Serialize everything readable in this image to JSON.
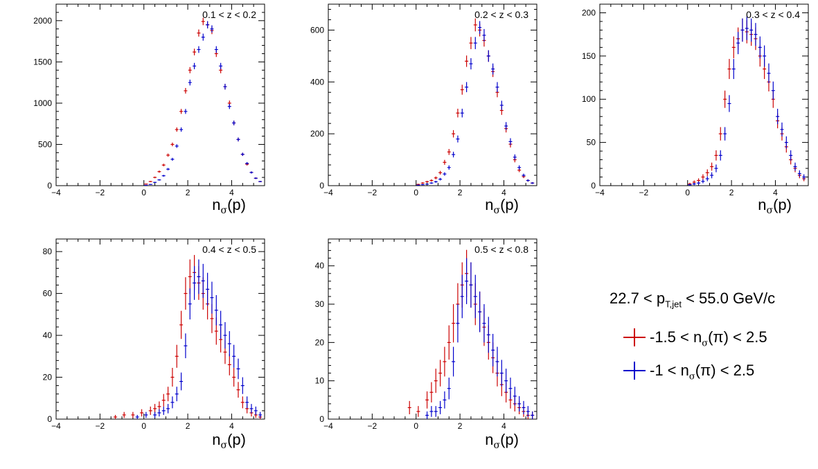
{
  "chart_data": [
    {
      "type": "scatter",
      "panel": "0.1 < z < 0.2",
      "annotation": "0.1 < z < 0.2",
      "xlabel": "nσ(p)",
      "xlim": [
        -4,
        5.5
      ],
      "ylim": [
        0,
        2200
      ],
      "xticks": [
        -4,
        -2,
        0,
        2,
        4
      ],
      "yticks": [
        0,
        500,
        1000,
        1500,
        2000
      ],
      "series": [
        {
          "color": "#cc0000",
          "x": [
            0.1,
            0.3,
            0.5,
            0.7,
            0.9,
            1.1,
            1.3,
            1.5,
            1.7,
            1.9,
            2.1,
            2.3,
            2.5,
            2.7,
            2.9,
            3.1,
            3.3,
            3.5,
            3.7,
            3.9,
            4.1,
            4.3,
            4.5,
            4.7,
            4.9,
            5.1,
            5.3
          ],
          "y": [
            20,
            50,
            100,
            170,
            250,
            370,
            500,
            680,
            900,
            1150,
            1400,
            1620,
            1850,
            1990,
            1950,
            1880,
            1600,
            1400,
            1200,
            1000,
            760,
            560,
            380,
            260,
            160,
            90,
            50
          ]
        },
        {
          "color": "#0000cc",
          "x": [
            0.1,
            0.3,
            0.5,
            0.7,
            0.9,
            1.1,
            1.3,
            1.5,
            1.7,
            1.9,
            2.1,
            2.3,
            2.5,
            2.7,
            2.9,
            3.1,
            3.3,
            3.5,
            3.7,
            3.9,
            4.1,
            4.3,
            4.5,
            4.7,
            4.9,
            5.1,
            5.3
          ],
          "y": [
            5,
            15,
            40,
            70,
            120,
            200,
            320,
            480,
            680,
            900,
            1250,
            1450,
            1650,
            1800,
            1950,
            1900,
            1650,
            1450,
            1200,
            960,
            760,
            560,
            380,
            270,
            160,
            90,
            50
          ]
        }
      ]
    },
    {
      "type": "scatter",
      "panel": "0.2 < z < 0.3",
      "annotation": "0.2 < z < 0.3",
      "xlabel": "nσ(p)",
      "xlim": [
        -4,
        5.5
      ],
      "ylim": [
        0,
        700
      ],
      "xticks": [
        -4,
        -2,
        0,
        2,
        4
      ],
      "yticks": [
        0,
        200,
        400,
        600
      ],
      "series": [
        {
          "color": "#cc0000",
          "x": [
            0.1,
            0.3,
            0.5,
            0.7,
            0.9,
            1.1,
            1.3,
            1.5,
            1.7,
            1.9,
            2.1,
            2.3,
            2.5,
            2.7,
            2.9,
            3.1,
            3.3,
            3.5,
            3.7,
            3.9,
            4.1,
            4.3,
            4.5,
            4.7,
            4.9,
            5.1,
            5.3
          ],
          "y": [
            5,
            10,
            15,
            20,
            30,
            50,
            90,
            130,
            200,
            280,
            370,
            480,
            550,
            620,
            600,
            560,
            500,
            440,
            360,
            290,
            220,
            160,
            100,
            60,
            35,
            20,
            10
          ]
        },
        {
          "color": "#0000cc",
          "x": [
            0.1,
            0.3,
            0.5,
            0.7,
            0.9,
            1.1,
            1.3,
            1.5,
            1.7,
            1.9,
            2.1,
            2.3,
            2.5,
            2.7,
            2.9,
            3.1,
            3.3,
            3.5,
            3.7,
            3.9,
            4.1,
            4.3,
            4.5,
            4.7,
            4.9,
            5.1,
            5.3
          ],
          "y": [
            2,
            4,
            6,
            10,
            15,
            25,
            45,
            70,
            120,
            180,
            280,
            380,
            470,
            550,
            610,
            580,
            500,
            450,
            380,
            310,
            230,
            170,
            110,
            70,
            40,
            20,
            10
          ]
        }
      ]
    },
    {
      "type": "scatter",
      "panel": "0.3 < z < 0.4",
      "annotation": "0.3 < z < 0.4",
      "xlabel": "nσ(p)",
      "xlim": [
        -4,
        5.5
      ],
      "ylim": [
        0,
        210
      ],
      "xticks": [
        -4,
        -2,
        0,
        2,
        4
      ],
      "yticks": [
        0,
        50,
        100,
        150,
        200
      ],
      "series": [
        {
          "color": "#cc0000",
          "x": [
            0.1,
            0.3,
            0.5,
            0.7,
            0.9,
            1.1,
            1.3,
            1.5,
            1.7,
            1.9,
            2.1,
            2.3,
            2.5,
            2.7,
            2.9,
            3.1,
            3.3,
            3.5,
            3.7,
            3.9,
            4.1,
            4.3,
            4.5,
            4.7,
            4.9,
            5.1,
            5.3
          ],
          "y": [
            2,
            4,
            6,
            10,
            15,
            22,
            35,
            60,
            100,
            135,
            160,
            170,
            180,
            178,
            175,
            170,
            150,
            135,
            120,
            100,
            75,
            60,
            45,
            30,
            20,
            12,
            8
          ]
        },
        {
          "color": "#0000cc",
          "x": [
            0.1,
            0.3,
            0.5,
            0.7,
            0.9,
            1.1,
            1.3,
            1.5,
            1.7,
            1.9,
            2.1,
            2.3,
            2.5,
            2.7,
            2.9,
            3.1,
            3.3,
            3.5,
            3.7,
            3.9,
            4.1,
            4.3,
            4.5,
            4.7,
            4.9,
            5.1,
            5.3
          ],
          "y": [
            1,
            2,
            3,
            5,
            8,
            12,
            20,
            35,
            60,
            95,
            135,
            165,
            180,
            182,
            180,
            175,
            160,
            150,
            130,
            110,
            80,
            65,
            50,
            35,
            22,
            14,
            10
          ]
        }
      ]
    },
    {
      "type": "scatter",
      "panel": "0.4 < z < 0.5",
      "annotation": "0.4 < z < 0.5",
      "xlabel": "nσ(p)",
      "xlim": [
        -4,
        5.5
      ],
      "ylim": [
        0,
        86
      ],
      "xticks": [
        -4,
        -2,
        0,
        2,
        4
      ],
      "yticks": [
        0,
        20,
        40,
        60,
        80
      ],
      "series": [
        {
          "color": "#cc0000",
          "x": [
            -1.3,
            -0.9,
            -0.5,
            -0.1,
            0.3,
            0.5,
            0.7,
            0.9,
            1.1,
            1.3,
            1.5,
            1.7,
            1.9,
            2.1,
            2.3,
            2.5,
            2.7,
            2.9,
            3.1,
            3.3,
            3.5,
            3.7,
            3.9,
            4.1,
            4.3,
            4.5,
            4.7,
            4.9,
            5.1,
            5.3
          ],
          "y": [
            1,
            2,
            2,
            3,
            4,
            5,
            6,
            9,
            12,
            20,
            30,
            45,
            60,
            68,
            70,
            65,
            60,
            55,
            48,
            42,
            38,
            32,
            26,
            20,
            14,
            8,
            5,
            3,
            2,
            1
          ]
        },
        {
          "color": "#0000cc",
          "x": [
            -0.3,
            0.1,
            0.5,
            0.7,
            0.9,
            1.1,
            1.3,
            1.5,
            1.7,
            1.9,
            2.1,
            2.3,
            2.5,
            2.7,
            2.9,
            3.1,
            3.3,
            3.5,
            3.7,
            3.9,
            4.1,
            4.3,
            4.5,
            4.7,
            4.9,
            5.1,
            5.3
          ],
          "y": [
            1,
            2,
            2,
            3,
            4,
            5,
            8,
            12,
            18,
            35,
            55,
            65,
            68,
            66,
            62,
            58,
            52,
            45,
            40,
            36,
            30,
            24,
            16,
            8,
            5,
            4,
            2
          ]
        }
      ]
    },
    {
      "type": "scatter",
      "panel": "0.5 < z < 0.8",
      "annotation": "0.5 < z < 0.8",
      "xlabel": "nσ(p)",
      "xlim": [
        -4,
        5.5
      ],
      "ylim": [
        0,
        47
      ],
      "xticks": [
        -4,
        -2,
        0,
        2,
        4
      ],
      "yticks": [
        0,
        10,
        20,
        30,
        40
      ],
      "series": [
        {
          "color": "#cc0000",
          "x": [
            -0.3,
            0.1,
            0.5,
            0.7,
            0.9,
            1.1,
            1.3,
            1.5,
            1.7,
            1.9,
            2.1,
            2.3,
            2.5,
            2.7,
            2.9,
            3.1,
            3.3,
            3.5,
            3.7,
            3.9,
            4.1,
            4.3,
            4.5,
            4.7,
            4.9,
            5.1,
            5.3
          ],
          "y": [
            3,
            2,
            5,
            7,
            10,
            12,
            15,
            20,
            25,
            30,
            35,
            38,
            35,
            30,
            28,
            24,
            20,
            16,
            12,
            9,
            7,
            5,
            4,
            3,
            2,
            1,
            1
          ]
        },
        {
          "color": "#0000cc",
          "x": [
            0.5,
            0.7,
            0.9,
            1.1,
            1.3,
            1.5,
            1.7,
            1.9,
            2.1,
            2.3,
            2.5,
            2.7,
            2.9,
            3.1,
            3.3,
            3.5,
            3.7,
            3.9,
            4.1,
            4.3,
            4.5,
            4.7,
            4.9,
            5.1,
            5.3
          ],
          "y": [
            1,
            2,
            2,
            3,
            5,
            8,
            15,
            25,
            32,
            36,
            35,
            32,
            28,
            25,
            22,
            18,
            15,
            12,
            10,
            8,
            6,
            4,
            3,
            2,
            1
          ]
        }
      ]
    }
  ],
  "legend": {
    "title_main": "22.7 < p",
    "title_sub": "T,jet",
    "title_tail": " < 55.0 GeV/c",
    "entries": [
      {
        "label_a": "-1.5 < n",
        "label_sub": "σ",
        "label_b": "(π) < 2.5",
        "color": "#cc0000"
      },
      {
        "label_a": "-1 < n",
        "label_sub": "σ",
        "label_b": "(π) < 2.5",
        "color": "#0000cc"
      }
    ]
  }
}
